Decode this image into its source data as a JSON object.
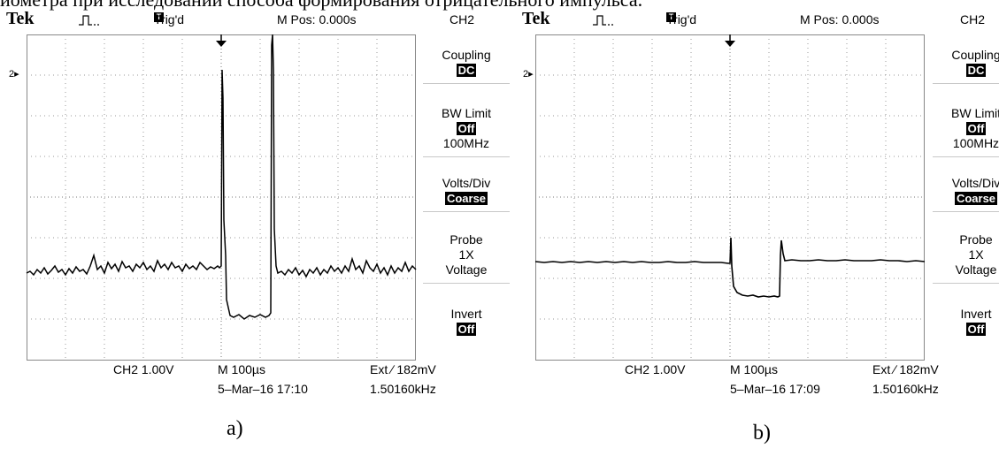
{
  "caption": "иометра при исследовании способа формирования отрицательного импульса.",
  "scopes": [
    {
      "brand": "Tek",
      "trigger_state": "Trig'd",
      "trigger_icon": "T",
      "m_pos": "M Pos: 0.000s",
      "channel": "CH2",
      "channel_marker": "2",
      "menu": {
        "coupling_label": "Coupling",
        "coupling_value": "DC",
        "bw_label": "BW Limit",
        "bw_value": "Off",
        "bw_freq": "100MHz",
        "volts_label": "Volts/Div",
        "volts_value": "Coarse",
        "probe_label": "Probe",
        "probe_value": "1X",
        "probe_type": "Voltage",
        "invert_label": "Invert",
        "invert_value": "Off"
      },
      "ch_scale": "CH2  1.00V",
      "timebase": "M 100µs",
      "ext_trigger": "Ext ∕ 182mV",
      "datetime": "5–Mar–16 17:10",
      "frequency": "1.50160kHz",
      "panel_label": "a)"
    },
    {
      "brand": "Tek",
      "trigger_state": "Trig'd",
      "trigger_icon": "T",
      "m_pos": "M Pos: 0.000s",
      "channel": "CH2",
      "channel_marker": "2",
      "menu": {
        "coupling_label": "Coupling",
        "coupling_value": "DC",
        "bw_label": "BW Limit",
        "bw_value": "Off",
        "bw_freq": "100MHz",
        "volts_label": "Volts/Div",
        "volts_value": "Coarse",
        "probe_label": "Probe",
        "probe_value": "1X",
        "probe_type": "Voltage",
        "invert_label": "Invert",
        "invert_value": "Off"
      },
      "ch_scale": "CH2  1.00V",
      "timebase": "M 100µs",
      "ext_trigger": "Ext ∕ 182mV",
      "datetime": "5–Mar–16 17:09",
      "frequency": "1.50160kHz",
      "panel_label": "b)"
    }
  ]
}
